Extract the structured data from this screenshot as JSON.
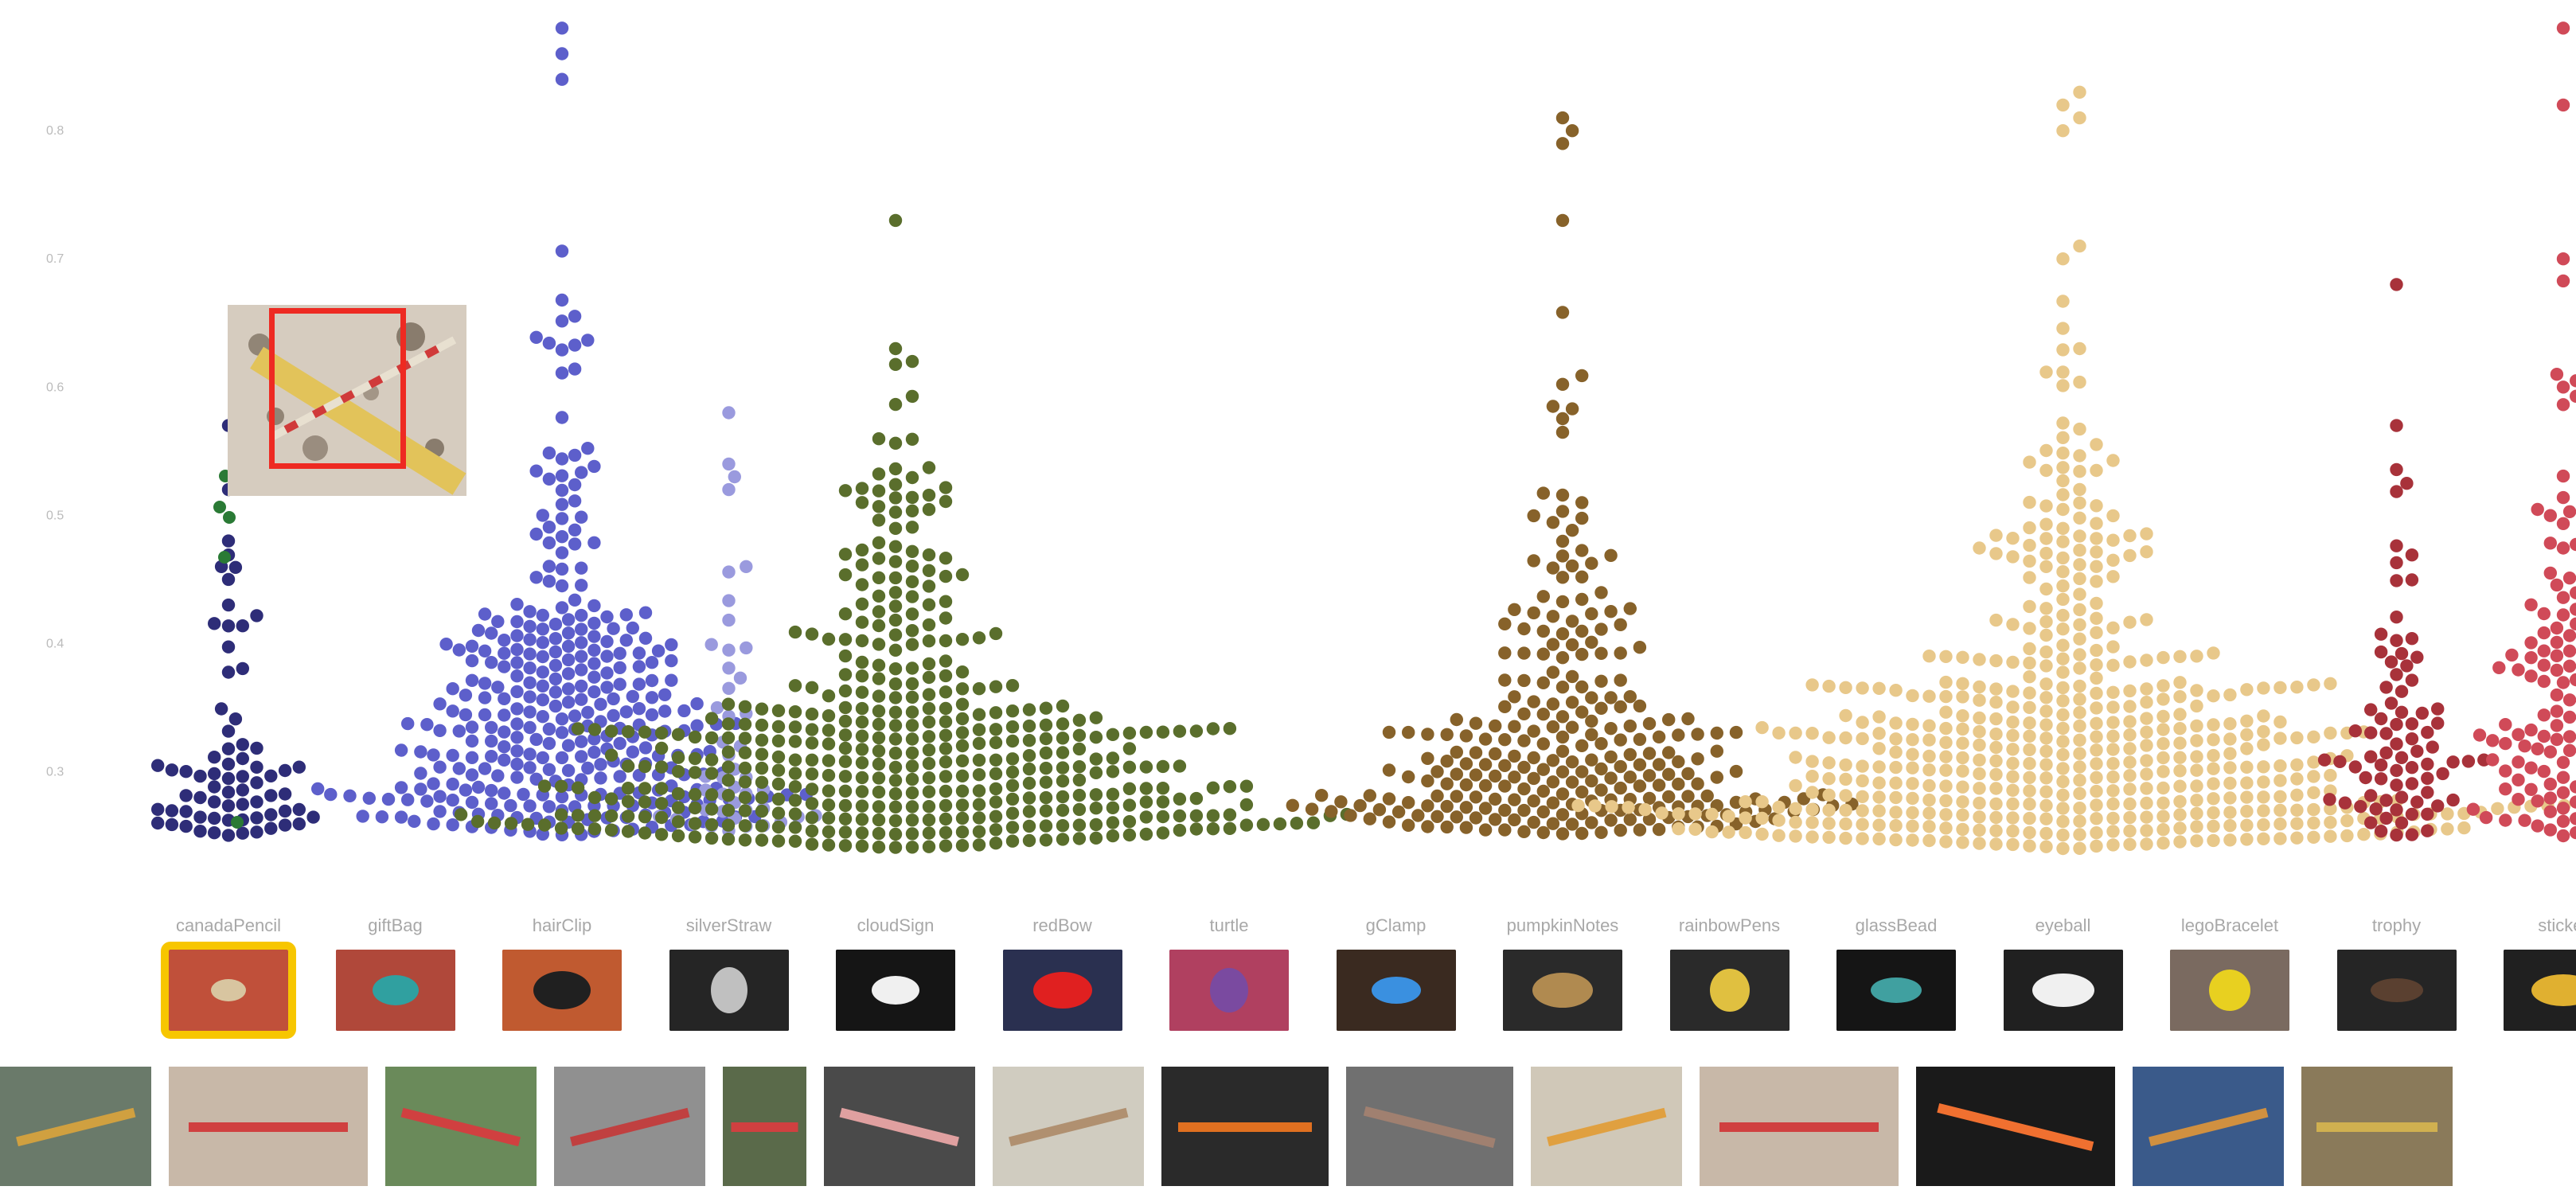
{
  "colors": {
    "accent_selected": "#f7c600",
    "highlight_box": "#ee2a22",
    "tick_label": "#bbbbbb",
    "category_label": "#a8a8a8",
    "highlight_point": "#2a7a35"
  },
  "chart_data": {
    "type": "scatter",
    "subtype": "beeswarm",
    "title": "",
    "xlabel": "",
    "ylabel": "",
    "ylim": [
      0.22,
      0.88
    ],
    "yticks": [
      "0.3",
      "0.4",
      "0.5",
      "0.6",
      "0.7",
      "0.8"
    ],
    "grid": false,
    "categories": [
      "canadaPencil",
      "giftBag",
      "hairClip",
      "silverStraw",
      "cloudSign",
      "redBow",
      "turtle",
      "gClamp",
      "pumpkinNotes",
      "rainbowPens",
      "glassBead",
      "eyeball",
      "legoBracelet",
      "trophy",
      "sticker"
    ],
    "series": [
      {
        "category": "canadaPencil",
        "color": "#2e2d78",
        "count": 70,
        "min": 0.25,
        "max": 0.57,
        "mode": 0.28,
        "spread": 0.55,
        "outliers": [
          0.43,
          0.45,
          0.46,
          0.48,
          0.52,
          0.57
        ]
      },
      {
        "category": "giftBag",
        "color": "#5a5ac8",
        "count": 0,
        "min": 0,
        "max": 0,
        "mode": 0,
        "spread": 0,
        "outliers": []
      },
      {
        "category": "hairClip",
        "color": "#5d5fcb",
        "count": 330,
        "min": 0.25,
        "max": 0.88,
        "mode": 0.38,
        "spread": 0.5,
        "outliers": [
          0.84,
          0.86,
          0.88
        ]
      },
      {
        "category": "silverStraw",
        "color": "#9a9ade",
        "count": 45,
        "min": 0.25,
        "max": 0.58,
        "mode": 0.3,
        "spread": 0.45,
        "outliers": [
          0.46,
          0.52,
          0.53,
          0.54,
          0.58
        ]
      },
      {
        "category": "cloudSign",
        "color": "#5a6e2c",
        "count": 460,
        "min": 0.24,
        "max": 0.73,
        "mode": 0.31,
        "spread": 1.3,
        "outliers": [
          0.62,
          0.63,
          0.73
        ]
      },
      {
        "category": "redBow",
        "color": "#c03a3a",
        "count": 0,
        "min": 0,
        "max": 0,
        "mode": 0,
        "spread": 0,
        "outliers": []
      },
      {
        "category": "turtle",
        "color": "#7a5aa0",
        "count": 0,
        "min": 0,
        "max": 0,
        "mode": 0,
        "spread": 0,
        "outliers": []
      },
      {
        "category": "gClamp",
        "color": "#3a80c0",
        "count": 0,
        "min": 0,
        "max": 0,
        "mode": 0,
        "spread": 0,
        "outliers": []
      },
      {
        "category": "pumpkinNotes",
        "color": "#87622a",
        "count": 270,
        "min": 0.25,
        "max": 0.81,
        "mode": 0.3,
        "spread": 0.75,
        "outliers": [
          0.73,
          0.79,
          0.8,
          0.81
        ]
      },
      {
        "category": "rainbowPens",
        "color": "#40a070",
        "count": 0,
        "min": 0,
        "max": 0,
        "mode": 0,
        "spread": 0,
        "outliers": []
      },
      {
        "category": "glassBead",
        "color": "#508080",
        "count": 0,
        "min": 0,
        "max": 0,
        "mode": 0,
        "spread": 0,
        "outliers": []
      },
      {
        "category": "eyeball",
        "color": "#e8c88a",
        "count": 520,
        "min": 0.24,
        "max": 0.83,
        "mode": 0.33,
        "spread": 1.3,
        "outliers": [
          0.63,
          0.7,
          0.71,
          0.8,
          0.81,
          0.82,
          0.83
        ]
      },
      {
        "category": "legoBracelet",
        "color": "#b0a030",
        "count": 0,
        "min": 0,
        "max": 0,
        "mode": 0,
        "spread": 0,
        "outliers": []
      },
      {
        "category": "trophy",
        "color": "#a8323a",
        "count": 80,
        "min": 0.25,
        "max": 0.68,
        "mode": 0.3,
        "spread": 0.4,
        "outliers": [
          0.57,
          0.68
        ]
      },
      {
        "category": "sticker",
        "color": "#d04a58",
        "count": 140,
        "min": 0.25,
        "max": 0.88,
        "mode": 0.4,
        "spread": 0.5,
        "outliers": [
          0.6,
          0.61,
          0.7,
          0.82,
          0.88
        ]
      }
    ],
    "selected_category": "canadaPencil"
  },
  "thumbnails": [
    {
      "category": "canadaPencil",
      "bg": "#c0503a",
      "fg": "#d8c5a0",
      "selected": true
    },
    {
      "category": "giftBag",
      "bg": "#b0483a",
      "fg": "#30a0a0",
      "selected": false
    },
    {
      "category": "hairClip",
      "bg": "#c05a30",
      "fg": "#202020",
      "selected": false
    },
    {
      "category": "silverStraw",
      "bg": "#252525",
      "fg": "#c0c0c0",
      "selected": false
    },
    {
      "category": "cloudSign",
      "bg": "#151515",
      "fg": "#f0f0f0",
      "selected": false
    },
    {
      "category": "redBow",
      "bg": "#2a3050",
      "fg": "#e02020",
      "selected": false
    },
    {
      "category": "turtle",
      "bg": "#b04060",
      "fg": "#7a4aa0",
      "selected": false
    },
    {
      "category": "gClamp",
      "bg": "#3a2a20",
      "fg": "#3a90e0",
      "selected": false
    },
    {
      "category": "pumpkinNotes",
      "bg": "#2a2a2a",
      "fg": "#b08a50",
      "selected": false
    },
    {
      "category": "rainbowPens",
      "bg": "#2a2a2a",
      "fg": "#e0c040",
      "selected": false
    },
    {
      "category": "glassBead",
      "bg": "#151515",
      "fg": "#40a0a0",
      "selected": false
    },
    {
      "category": "eyeball",
      "bg": "#202020",
      "fg": "#f0f0f0",
      "selected": false
    },
    {
      "category": "legoBracelet",
      "bg": "#7a6a60",
      "fg": "#e8d020",
      "selected": false
    },
    {
      "category": "trophy",
      "bg": "#252525",
      "fg": "#5a4030",
      "selected": false
    },
    {
      "category": "sticker",
      "bg": "#202020",
      "fg": "#e0b030",
      "selected": false
    }
  ],
  "photo_strip": [
    {
      "bg": "#6a7a6a",
      "fg": "#d0a040"
    },
    {
      "bg": "#c8b8a8",
      "fg": "#d04040"
    },
    {
      "bg": "#6a8a5a",
      "fg": "#d04040"
    },
    {
      "bg": "#909090",
      "fg": "#c04040"
    },
    {
      "bg": "#5a6a4a",
      "fg": "#d04040"
    },
    {
      "bg": "#4a4a4a",
      "fg": "#e0a0a0"
    },
    {
      "bg": "#d0ccc0",
      "fg": "#b09070"
    },
    {
      "bg": "#2a2a2a",
      "fg": "#e07020"
    },
    {
      "bg": "#707070",
      "fg": "#a08070"
    },
    {
      "bg": "#d0c8b8",
      "fg": "#e0a040"
    },
    {
      "bg": "#c8b8a8",
      "fg": "#d04040"
    },
    {
      "bg": "#1a1a1a",
      "fg": "#f07030"
    },
    {
      "bg": "#3a5a8a",
      "fg": "#d09040"
    },
    {
      "bg": "#8a7a5a",
      "fg": "#d0b050"
    }
  ],
  "hover_preview": {
    "bg": "#d6ccbf",
    "fg": "#d04040",
    "category": "canadaPencil"
  }
}
